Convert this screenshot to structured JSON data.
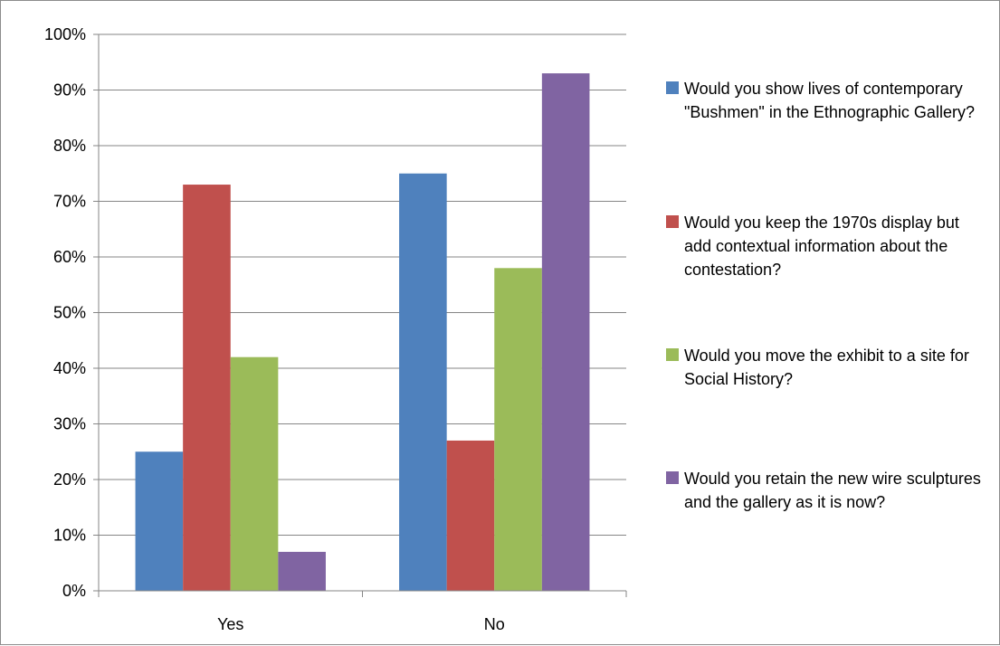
{
  "chart_data": {
    "type": "bar",
    "categories": [
      "Yes",
      "No"
    ],
    "series": [
      {
        "name": "Would you show lives of contemporary \"Bushmen\" in the Ethnographic Gallery?",
        "values": [
          25,
          75
        ],
        "color": "#4f81bd"
      },
      {
        "name": "Would you keep the 1970s display but add contextual information about the contestation?",
        "values": [
          73,
          27
        ],
        "color": "#c0504d"
      },
      {
        "name": "Would you move the exhibit to a site for Social History?",
        "values": [
          42,
          58
        ],
        "color": "#9bbb59"
      },
      {
        "name": "Would you retain the new wire sculptures and the gallery as it is now?",
        "values": [
          7,
          93
        ],
        "color": "#8064a2"
      }
    ],
    "ylim": [
      0,
      100
    ],
    "yticks": [
      "0%",
      "10%",
      "20%",
      "30%",
      "40%",
      "50%",
      "60%",
      "70%",
      "80%",
      "90%",
      "100%"
    ],
    "unit": "%",
    "grid": true,
    "legend_position": "right",
    "title": "",
    "xlabel": "",
    "ylabel": ""
  }
}
